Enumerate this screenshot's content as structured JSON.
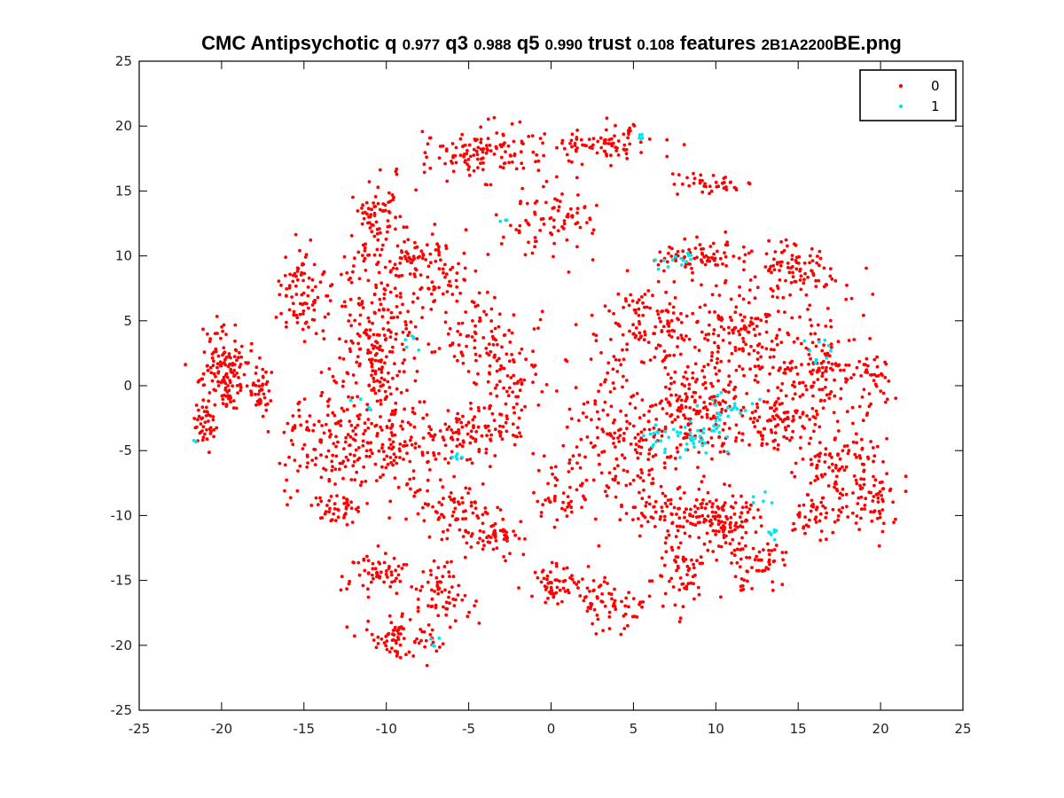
{
  "chart_data": {
    "type": "scatter",
    "title_parts": [
      {
        "text": "CMC Antipsychotic q ",
        "size": "big"
      },
      {
        "text": "0.977",
        "size": "small"
      },
      {
        "text": " q3 ",
        "size": "big"
      },
      {
        "text": "0.988",
        "size": "small"
      },
      {
        "text": " q5 ",
        "size": "big"
      },
      {
        "text": "0.990",
        "size": "small"
      },
      {
        "text": " trust ",
        "size": "big"
      },
      {
        "text": "0.108",
        "size": "small"
      },
      {
        "text": " features ",
        "size": "big"
      },
      {
        "text": "2B1A2200",
        "size": "small"
      },
      {
        "text": "BE.png",
        "size": "big"
      }
    ],
    "xlim": [
      -25,
      25
    ],
    "ylim": [
      -25,
      25
    ],
    "x_ticks": [
      -25,
      -20,
      -15,
      -10,
      -5,
      0,
      5,
      10,
      15,
      20,
      25
    ],
    "y_ticks": [
      -25,
      -20,
      -15,
      -10,
      -5,
      0,
      5,
      10,
      15,
      20,
      25
    ],
    "grid": false,
    "legend_position": "top-right",
    "series": [
      {
        "name": "0",
        "color": "#ff0000",
        "clusters": [
          {
            "cx": -19.8,
            "cy": 1.0,
            "sx": 1.1,
            "sy": 2.2,
            "n": 140,
            "seed": 11
          },
          {
            "cx": -21.0,
            "cy": -3.0,
            "sx": 0.6,
            "sy": 1.2,
            "n": 40,
            "seed": 12
          },
          {
            "cx": -17.7,
            "cy": -0.5,
            "sx": 0.6,
            "sy": 1.6,
            "n": 40,
            "seed": 13
          },
          {
            "cx": -15.0,
            "cy": 6.5,
            "sx": 1.2,
            "sy": 3.0,
            "n": 90,
            "seed": 14
          },
          {
            "cx": -13.0,
            "cy": -4.5,
            "sx": 2.5,
            "sy": 3.0,
            "n": 150,
            "seed": 15
          },
          {
            "cx": -13.0,
            "cy": -9.5,
            "sx": 1.2,
            "sy": 0.8,
            "n": 40,
            "seed": 16
          },
          {
            "cx": -10.5,
            "cy": 13.0,
            "sx": 1.0,
            "sy": 2.0,
            "n": 70,
            "seed": 17
          },
          {
            "cx": -10.5,
            "cy": 3.0,
            "sx": 1.6,
            "sy": 4.0,
            "n": 190,
            "seed": 18
          },
          {
            "cx": -8.5,
            "cy": 9.0,
            "sx": 3.0,
            "sy": 2.0,
            "n": 140,
            "seed": 19
          },
          {
            "cx": -9.0,
            "cy": -5.0,
            "sx": 2.0,
            "sy": 2.5,
            "n": 120,
            "seed": 20
          },
          {
            "cx": -6.0,
            "cy": -9.5,
            "sx": 2.0,
            "sy": 1.2,
            "n": 60,
            "seed": 21
          },
          {
            "cx": -5.5,
            "cy": -4.0,
            "sx": 1.3,
            "sy": 1.5,
            "n": 60,
            "seed": 22
          },
          {
            "cx": -5.0,
            "cy": 4.0,
            "sx": 2.0,
            "sy": 2.0,
            "n": 80,
            "seed": 23
          },
          {
            "cx": -4.0,
            "cy": 18.0,
            "sx": 2.8,
            "sy": 1.5,
            "n": 130,
            "seed": 24
          },
          {
            "cx": 3.0,
            "cy": 18.5,
            "sx": 2.5,
            "sy": 1.2,
            "n": 80,
            "seed": 25
          },
          {
            "cx": 0.0,
            "cy": 12.5,
            "sx": 2.0,
            "sy": 2.0,
            "n": 80,
            "seed": 26
          },
          {
            "cx": -2.5,
            "cy": 0.0,
            "sx": 1.5,
            "sy": 3.0,
            "n": 80,
            "seed": 27
          },
          {
            "cx": -3.0,
            "cy": -3.5,
            "sx": 1.0,
            "sy": 1.0,
            "n": 25,
            "seed": 28
          },
          {
            "cx": -10.5,
            "cy": -14.5,
            "sx": 1.5,
            "sy": 1.2,
            "n": 60,
            "seed": 29
          },
          {
            "cx": -9.0,
            "cy": -19.5,
            "sx": 1.5,
            "sy": 1.0,
            "n": 70,
            "seed": 30
          },
          {
            "cx": -6.5,
            "cy": -16.0,
            "sx": 1.2,
            "sy": 2.5,
            "n": 70,
            "seed": 31
          },
          {
            "cx": -3.8,
            "cy": -11.5,
            "sx": 1.6,
            "sy": 1.0,
            "n": 60,
            "seed": 32
          },
          {
            "cx": 0.5,
            "cy": -8.5,
            "sx": 1.2,
            "sy": 1.5,
            "n": 40,
            "seed": 33
          },
          {
            "cx": 0.5,
            "cy": -15.5,
            "sx": 1.6,
            "sy": 1.2,
            "n": 60,
            "seed": 34
          },
          {
            "cx": 3.8,
            "cy": -17.0,
            "sx": 1.6,
            "sy": 1.5,
            "n": 60,
            "seed": 35
          },
          {
            "cx": 4.0,
            "cy": -4.0,
            "sx": 2.5,
            "sy": 4.0,
            "n": 170,
            "seed": 36
          },
          {
            "cx": 6.0,
            "cy": 5.0,
            "sx": 2.5,
            "sy": 2.0,
            "n": 120,
            "seed": 37
          },
          {
            "cx": 9.0,
            "cy": 10.0,
            "sx": 2.0,
            "sy": 1.0,
            "n": 70,
            "seed": 38
          },
          {
            "cx": 9.5,
            "cy": 15.5,
            "sx": 1.5,
            "sy": 0.6,
            "n": 40,
            "seed": 39
          },
          {
            "cx": 9.0,
            "cy": -2.0,
            "sx": 2.5,
            "sy": 3.0,
            "n": 190,
            "seed": 40
          },
          {
            "cx": 11.5,
            "cy": 4.0,
            "sx": 2.5,
            "sy": 3.0,
            "n": 160,
            "seed": 41
          },
          {
            "cx": 15.0,
            "cy": 9.0,
            "sx": 2.0,
            "sy": 1.6,
            "n": 90,
            "seed": 42
          },
          {
            "cx": 16.5,
            "cy": 2.0,
            "sx": 2.0,
            "sy": 3.0,
            "n": 120,
            "seed": 43
          },
          {
            "cx": 14.0,
            "cy": -2.5,
            "sx": 2.0,
            "sy": 2.0,
            "n": 100,
            "seed": 44
          },
          {
            "cx": 17.5,
            "cy": -6.0,
            "sx": 1.8,
            "sy": 1.6,
            "n": 90,
            "seed": 45
          },
          {
            "cx": 19.5,
            "cy": -9.0,
            "sx": 1.2,
            "sy": 2.0,
            "n": 60,
            "seed": 46
          },
          {
            "cx": 16.0,
            "cy": -10.0,
            "sx": 1.2,
            "sy": 1.2,
            "n": 50,
            "seed": 47
          },
          {
            "cx": 10.5,
            "cy": -10.5,
            "sx": 1.6,
            "sy": 1.5,
            "n": 120,
            "seed": 48
          },
          {
            "cx": 8.0,
            "cy": -14.5,
            "sx": 1.2,
            "sy": 2.0,
            "n": 60,
            "seed": 49
          },
          {
            "cx": 12.5,
            "cy": -13.5,
            "sx": 1.5,
            "sy": 1.5,
            "n": 60,
            "seed": 50
          },
          {
            "cx": 7.0,
            "cy": -9.5,
            "sx": 1.8,
            "sy": 1.5,
            "n": 70,
            "seed": 51
          },
          {
            "cx": 19.5,
            "cy": 0.0,
            "sx": 1.0,
            "sy": 2.0,
            "n": 40,
            "seed": 52
          }
        ]
      },
      {
        "name": "1",
        "color": "#00e6ee",
        "clusters": [
          {
            "cx": 8.0,
            "cy": -4.0,
            "sx": 1.6,
            "sy": 1.0,
            "n": 45,
            "seed": 61
          },
          {
            "cx": 11.0,
            "cy": -2.0,
            "sx": 1.4,
            "sy": 1.2,
            "n": 25,
            "seed": 62
          },
          {
            "cx": 7.5,
            "cy": 9.5,
            "sx": 1.0,
            "sy": 0.6,
            "n": 14,
            "seed": 63
          },
          {
            "cx": 16.5,
            "cy": 2.5,
            "sx": 0.8,
            "sy": 1.2,
            "n": 10,
            "seed": 64
          },
          {
            "cx": 13.5,
            "cy": -11.5,
            "sx": 0.6,
            "sy": 0.5,
            "n": 8,
            "seed": 65
          },
          {
            "cx": 5.5,
            "cy": 19.0,
            "sx": 0.3,
            "sy": 0.6,
            "n": 5,
            "seed": 66
          },
          {
            "cx": -8.5,
            "cy": 3.5,
            "sx": 0.6,
            "sy": 0.6,
            "n": 6,
            "seed": 67
          },
          {
            "cx": -5.8,
            "cy": -5.5,
            "sx": 0.4,
            "sy": 0.4,
            "n": 5,
            "seed": 68
          },
          {
            "cx": -2.8,
            "cy": 12.8,
            "sx": 0.2,
            "sy": 0.2,
            "n": 3,
            "seed": 69
          },
          {
            "cx": 12.8,
            "cy": -8.8,
            "sx": 0.5,
            "sy": 0.5,
            "n": 5,
            "seed": 70
          },
          {
            "cx": -21.8,
            "cy": -4.2,
            "sx": 0.2,
            "sy": 0.2,
            "n": 2,
            "seed": 71
          },
          {
            "cx": -7.5,
            "cy": -19.8,
            "sx": 0.6,
            "sy": 0.4,
            "n": 4,
            "seed": 72
          },
          {
            "cx": -11.0,
            "cy": -1.5,
            "sx": 0.5,
            "sy": 0.5,
            "n": 4,
            "seed": 73
          }
        ]
      }
    ]
  }
}
